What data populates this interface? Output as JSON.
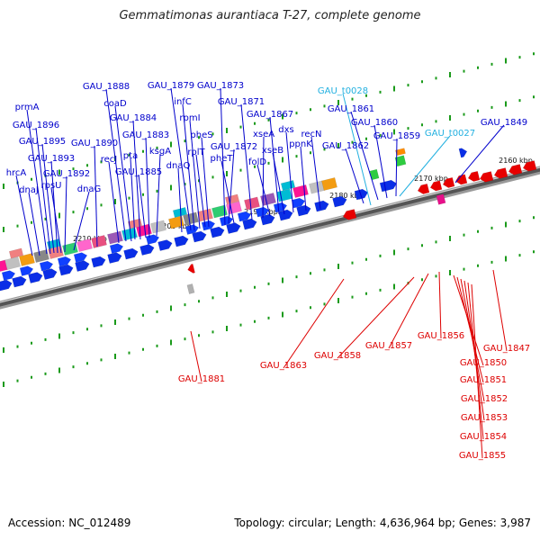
{
  "title": "Gemmatimonas aurantiaca T-27, complete genome",
  "footer": {
    "accession": "Accession: NC_012489",
    "summary": "Topology: circular; Length: 4,636,964 bp; Genes: 3,987"
  },
  "colors": {
    "forward_label": "#0000cc",
    "reverse_label": "#dd0000",
    "rna_label": "#22b0e0",
    "backbone": "#777777",
    "tick": "#1a9a1a"
  },
  "scale_labels": [
    "2210 kbp",
    "2200 kbp",
    "2190 kbp",
    "2180 kbp",
    "2170 kbp",
    "2160 kbp"
  ],
  "forward_genes": [
    "hrcA",
    "dnaJ",
    "prmA",
    "GAU_1896",
    "GAU_1895",
    "GAU_1893",
    "rpsU",
    "GAU_1892",
    "dnaG",
    "GAU_1890",
    "recJ",
    "GAU_1888",
    "coaD",
    "pta",
    "GAU_1884",
    "GAU_1885",
    "GAU_1883",
    "ksgA",
    "GAU_1879",
    "dnaQ",
    "infC",
    "rpmI",
    "rplT",
    "pheS",
    "GAU_1873",
    "GAU_1872",
    "pheT",
    "GAU_1871",
    "xseA",
    "GAU_1867",
    "folD",
    "xseB",
    "dxs",
    "ppnK",
    "recN",
    "GAU_1862",
    "GAU_1861",
    "GAU_1860",
    "GAU_1859",
    "GAU_1849"
  ],
  "rna_genes": [
    "GAU_t0028",
    "GAU_t0027"
  ],
  "reverse_genes": [
    "GAU_1881",
    "GAU_1863",
    "GAU_1858",
    "GAU_1857",
    "GAU_1856",
    "GAU_1847",
    "GAU_1850",
    "GAU_1851",
    "GAU_1852",
    "GAU_1853",
    "GAU_1854",
    "GAU_1855"
  ]
}
